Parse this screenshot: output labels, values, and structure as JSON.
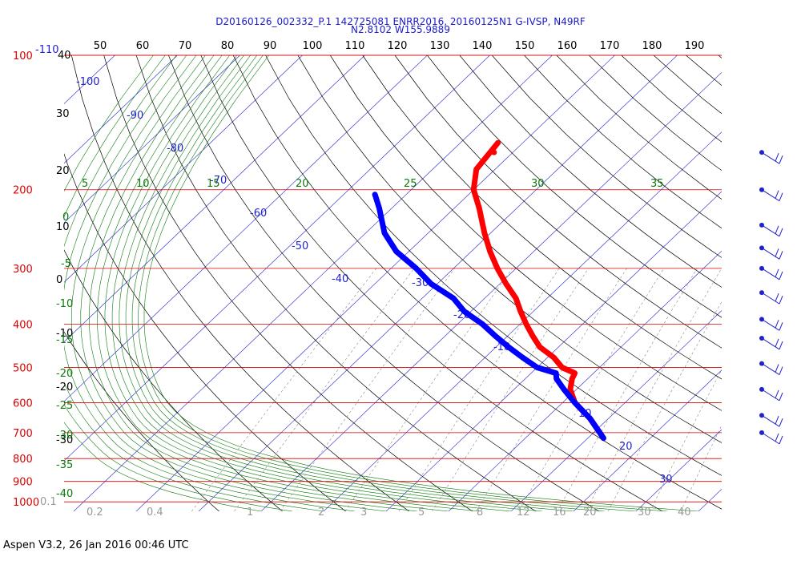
{
  "chart_data": {
    "type": "skew-t log-p diagram",
    "title": "D20160126_002332_P.1 142725081 ENRR2016, 20160125N1 G-IVSP, N49RF",
    "subtitle": "N2.8102 W155.9889",
    "footer": "Aspen V3.2, 26 Jan 2016  00:46 UTC",
    "pressure_levels_hPa": [
      "100",
      "200",
      "300",
      "400",
      "500",
      "600",
      "700",
      "800",
      "900",
      "1000"
    ],
    "top_pressure_extra": "-110",
    "top_pressure_secondary": "40",
    "top_axis_labels": [
      "50",
      "60",
      "70",
      "80",
      "90",
      "100",
      "110",
      "120",
      "130",
      "140",
      "150",
      "160",
      "170",
      "180",
      "190"
    ],
    "left_secondary_labels": [
      "30",
      "20",
      "10",
      "0",
      "-10",
      "-20",
      "-30"
    ],
    "temperature_isotherm_labels": [
      "-100",
      "-90",
      "-80",
      "-70",
      "-60",
      "-50",
      "-40",
      "-30",
      "-20",
      "-10",
      "10",
      "20",
      "30"
    ],
    "dry_adiabat_labels": [
      "5",
      "10",
      "15",
      "20",
      "25",
      "30",
      "35",
      "0",
      "-5",
      "-10",
      "-15",
      "-20",
      "-25",
      "-30",
      "-35",
      "-40"
    ],
    "mixing_ratio_labels": [
      "0.1",
      "0.2",
      "0.4",
      "1",
      "2",
      "3",
      "5",
      "8",
      "12",
      "16",
      "20",
      "30",
      "40"
    ],
    "series": [
      {
        "color": "#ff0000",
        "points": [
          {
            "p": 157,
            "t": -54.0
          },
          {
            "p": 180,
            "t": -53
          },
          {
            "p": 200,
            "t": -50
          },
          {
            "p": 220,
            "t": -46
          },
          {
            "p": 250,
            "t": -41
          },
          {
            "p": 275,
            "t": -37
          },
          {
            "p": 300,
            "t": -33
          },
          {
            "p": 325,
            "t": -29
          },
          {
            "p": 350,
            "t": -25
          },
          {
            "p": 375,
            "t": -22
          },
          {
            "p": 400,
            "t": -19
          },
          {
            "p": 425,
            "t": -16
          },
          {
            "p": 450,
            "t": -13
          },
          {
            "p": 475,
            "t": -9
          },
          {
            "p": 500,
            "t": -6
          },
          {
            "p": 515,
            "t": -3
          },
          {
            "p": 530,
            "t": -2.5
          },
          {
            "p": 560,
            "t": -1
          },
          {
            "p": 600,
            "t": 2
          },
          {
            "p": 650,
            "t": 7
          },
          {
            "p": 700,
            "t": 11
          },
          {
            "p": 720,
            "t": 12.5
          }
        ]
      },
      {
        "color": "#0000ff",
        "points": [
          {
            "p": 205,
            "t": -65
          },
          {
            "p": 220,
            "t": -62
          },
          {
            "p": 250,
            "t": -57
          },
          {
            "p": 275,
            "t": -52
          },
          {
            "p": 300,
            "t": -46
          },
          {
            "p": 325,
            "t": -41
          },
          {
            "p": 350,
            "t": -35
          },
          {
            "p": 375,
            "t": -31
          },
          {
            "p": 400,
            "t": -26
          },
          {
            "p": 425,
            "t": -22
          },
          {
            "p": 450,
            "t": -18
          },
          {
            "p": 475,
            "t": -14
          },
          {
            "p": 500,
            "t": -10
          },
          {
            "p": 515,
            "t": -6
          },
          {
            "p": 530,
            "t": -5
          },
          {
            "p": 560,
            "t": -2
          },
          {
            "p": 600,
            "t": 2
          },
          {
            "p": 650,
            "t": 7
          },
          {
            "p": 700,
            "t": 11
          },
          {
            "p": 720,
            "t": 12.5
          }
        ]
      }
    ],
    "isolated_point": {
      "p": 165,
      "t": -53
    },
    "wind_barbs": [
      {
        "p": 165
      },
      {
        "p": 200
      },
      {
        "p": 240
      },
      {
        "p": 270
      },
      {
        "p": 300
      },
      {
        "p": 340
      },
      {
        "p": 390
      },
      {
        "p": 430
      },
      {
        "p": 490
      },
      {
        "p": 560
      },
      {
        "p": 640
      },
      {
        "p": 700
      }
    ]
  }
}
